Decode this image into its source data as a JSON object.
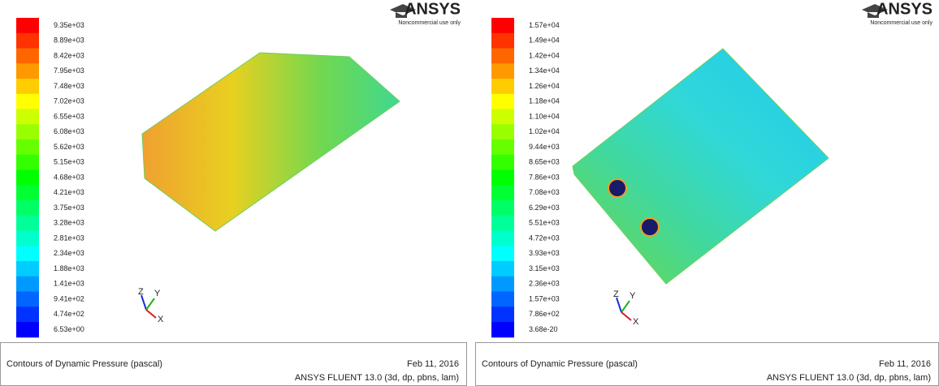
{
  "panels": [
    {
      "legend_labels": [
        "9.35e+03",
        "8.89e+03",
        "8.42e+03",
        "7.95e+03",
        "7.48e+03",
        "7.02e+03",
        "6.55e+03",
        "6.08e+03",
        "5.62e+03",
        "5.15e+03",
        "4.68e+03",
        "4.21e+03",
        "3.75e+03",
        "3.28e+03",
        "2.81e+03",
        "2.34e+03",
        "1.88e+03",
        "1.41e+03",
        "9.41e+02",
        "4.74e+02",
        "6.53e+00"
      ],
      "logo": "ANSYS",
      "logo_note": "Noncommercial use only",
      "axes": {
        "z": "Z",
        "y": "Y",
        "x": "X"
      },
      "footer": {
        "title": "Contours of Dynamic Pressure (pascal)",
        "date": "Feb 11, 2016",
        "version": "ANSYS FLUENT 13.0 (3d, dp, pbns, lam)"
      }
    },
    {
      "legend_labels": [
        "1.57e+04",
        "1.49e+04",
        "1.42e+04",
        "1.34e+04",
        "1.26e+04",
        "1.18e+04",
        "1.10e+04",
        "1.02e+04",
        "9.44e+03",
        "8.65e+03",
        "7.86e+03",
        "7.08e+03",
        "6.29e+03",
        "5.51e+03",
        "4.72e+03",
        "3.93e+03",
        "3.15e+03",
        "2.36e+03",
        "1.57e+03",
        "7.86e+02",
        "3.68e-20"
      ],
      "logo": "ANSYS",
      "logo_note": "Noncommercial use only",
      "axes": {
        "z": "Z",
        "y": "Y",
        "x": "X"
      },
      "footer": {
        "title": "Contours of Dynamic Pressure (pascal)",
        "date": "Feb 11, 2016",
        "version": "ANSYS FLUENT 13.0 (3d, dp, pbns, lam)"
      }
    }
  ]
}
